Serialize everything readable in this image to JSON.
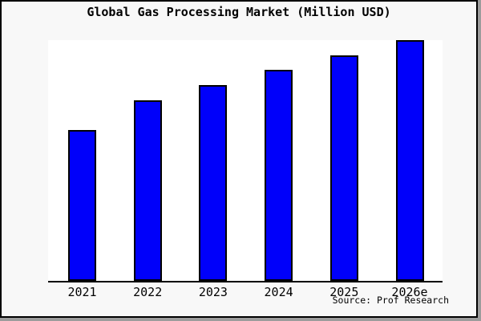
{
  "title": "Global Gas Processing Market (Million USD)",
  "source_text": "Source: Prof Research",
  "colors": {
    "bar_fill": "#0000fa",
    "bar_border": "#000000",
    "plot_bg": "#ffffff",
    "page_bg": "#f8f8f8",
    "frame": "#000000",
    "shadow": "#9c9c9c"
  },
  "chart_data": {
    "type": "bar",
    "categories": [
      "2021",
      "2022",
      "2023",
      "2024",
      "2025",
      "2026e"
    ],
    "values": [
      100,
      120,
      130,
      140,
      150,
      160
    ],
    "title": "Global Gas Processing Market (Million USD)",
    "xlabel": "",
    "ylabel": "",
    "ylim": [
      0,
      160
    ],
    "grid": false,
    "legend": "none",
    "y_axis_labels_visible": false,
    "source": "Source: Prof Research"
  }
}
